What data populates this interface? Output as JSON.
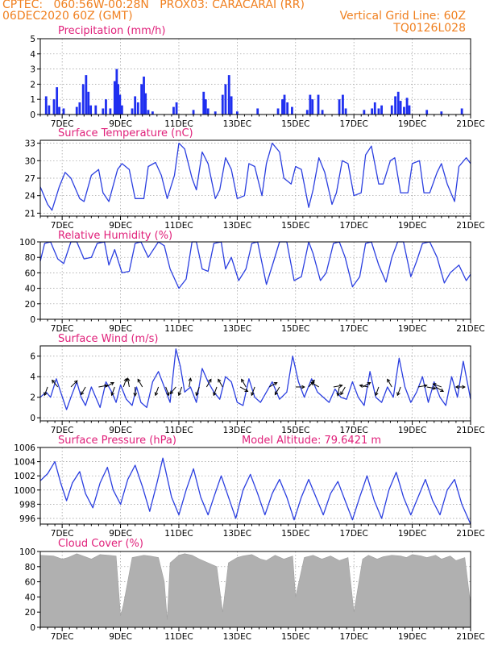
{
  "header": {
    "line1_left": "CPTEC:   060:56W-00:28N   PROX03: CARACARAI (RR)",
    "line2_left": "06DEC2020 60Z (GMT)",
    "line2_right": "Vertical Grid Line: 60Z",
    "line3_right": "TQ0126L028"
  },
  "colors": {
    "header": "#f08020",
    "panel_title": "#e0207a",
    "line": "#2b3fe0",
    "bars": "#1f2ff0",
    "cloud": "#b0b0b0",
    "arrow": "#000000"
  },
  "x_axis": {
    "tick_labels": [
      "7DEC",
      "9DEC",
      "11DEC",
      "13DEC",
      "15DEC",
      "17DEC",
      "19DEC",
      "21DEC"
    ],
    "tick_days": [
      7,
      9,
      11,
      13,
      15,
      17,
      19,
      21
    ],
    "range_days": [
      6.25,
      21.0
    ]
  },
  "chart_data": [
    {
      "id": "precip",
      "type": "bar",
      "title": "Precipitation (mm/h)",
      "ylim": [
        0,
        5
      ],
      "yticks": [
        0,
        1,
        2,
        3,
        4,
        5
      ],
      "grid": true,
      "bars": [
        [
          6.45,
          1.2
        ],
        [
          6.55,
          0.6
        ],
        [
          6.72,
          1.0
        ],
        [
          6.82,
          1.8
        ],
        [
          6.9,
          0.5
        ],
        [
          7.05,
          0.4
        ],
        [
          7.5,
          0.5
        ],
        [
          7.6,
          0.8
        ],
        [
          7.72,
          2.0
        ],
        [
          7.82,
          2.6
        ],
        [
          7.9,
          1.5
        ],
        [
          7.98,
          0.6
        ],
        [
          8.15,
          0.6
        ],
        [
          8.4,
          0.4
        ],
        [
          8.5,
          1.0
        ],
        [
          8.65,
          0.4
        ],
        [
          8.8,
          2.2
        ],
        [
          8.87,
          3.0
        ],
        [
          8.92,
          2.0
        ],
        [
          8.98,
          1.3
        ],
        [
          9.05,
          0.6
        ],
        [
          9.4,
          0.4
        ],
        [
          9.5,
          1.2
        ],
        [
          9.6,
          0.8
        ],
        [
          9.72,
          2.0
        ],
        [
          9.8,
          2.5
        ],
        [
          9.86,
          1.4
        ],
        [
          9.95,
          0.3
        ],
        [
          10.1,
          0.2
        ],
        [
          10.82,
          0.5
        ],
        [
          10.92,
          0.8
        ],
        [
          11.5,
          0.3
        ],
        [
          11.85,
          1.5
        ],
        [
          11.92,
          1.0
        ],
        [
          12.0,
          0.4
        ],
        [
          12.25,
          0.2
        ],
        [
          12.5,
          1.3
        ],
        [
          12.6,
          2.0
        ],
        [
          12.72,
          2.6
        ],
        [
          12.8,
          1.2
        ],
        [
          13.0,
          0.2
        ],
        [
          13.7,
          0.4
        ],
        [
          14.4,
          0.4
        ],
        [
          14.55,
          1.0
        ],
        [
          14.62,
          1.3
        ],
        [
          14.72,
          0.8
        ],
        [
          14.88,
          0.5
        ],
        [
          15.4,
          0.3
        ],
        [
          15.5,
          1.3
        ],
        [
          15.58,
          1.0
        ],
        [
          15.78,
          1.3
        ],
        [
          15.92,
          0.3
        ],
        [
          16.5,
          1.0
        ],
        [
          16.62,
          1.3
        ],
        [
          16.72,
          0.4
        ],
        [
          17.35,
          0.3
        ],
        [
          17.62,
          0.4
        ],
        [
          17.72,
          0.8
        ],
        [
          17.85,
          0.4
        ],
        [
          17.95,
          0.6
        ],
        [
          18.3,
          0.6
        ],
        [
          18.42,
          1.2
        ],
        [
          18.52,
          1.5
        ],
        [
          18.6,
          0.9
        ],
        [
          18.72,
          0.5
        ],
        [
          18.82,
          1.1
        ],
        [
          18.9,
          0.6
        ],
        [
          19.5,
          0.3
        ],
        [
          20.0,
          0.2
        ],
        [
          20.7,
          0.4
        ]
      ]
    },
    {
      "id": "temp",
      "type": "line",
      "title": "Surface Temperature (nC)",
      "ylim": [
        20.5,
        33.5
      ],
      "yticks": [
        21,
        24,
        27,
        30,
        33
      ],
      "grid": true,
      "x": [
        6.25,
        6.5,
        6.65,
        6.9,
        7.1,
        7.3,
        7.6,
        7.75,
        8.0,
        8.25,
        8.4,
        8.6,
        8.9,
        9.05,
        9.3,
        9.5,
        9.8,
        9.95,
        10.2,
        10.4,
        10.6,
        10.85,
        11.0,
        11.2,
        11.45,
        11.6,
        11.8,
        12.0,
        12.25,
        12.4,
        12.6,
        12.8,
        13.0,
        13.25,
        13.4,
        13.6,
        13.85,
        14.0,
        14.2,
        14.45,
        14.6,
        14.85,
        15.0,
        15.2,
        15.45,
        15.6,
        15.8,
        16.0,
        16.25,
        16.4,
        16.6,
        16.8,
        17.0,
        17.25,
        17.4,
        17.6,
        17.85,
        18.0,
        18.25,
        18.4,
        18.6,
        18.85,
        19.0,
        19.25,
        19.4,
        19.6,
        19.85,
        20.0,
        20.2,
        20.45,
        20.6,
        20.85,
        21.0
      ],
      "y": [
        25.5,
        22.5,
        21.5,
        25.5,
        28.0,
        27.0,
        23.5,
        23.0,
        27.5,
        28.5,
        24.5,
        23.0,
        28.5,
        29.5,
        28.5,
        23.5,
        23.5,
        29.0,
        29.7,
        27.5,
        23.5,
        27.5,
        33.0,
        32.0,
        27.0,
        25.0,
        31.5,
        29.5,
        23.5,
        25.0,
        30.5,
        28.5,
        23.5,
        24.0,
        29.5,
        29.0,
        24.0,
        29.5,
        33.0,
        31.5,
        27.0,
        26.0,
        29.0,
        28.5,
        22.0,
        25.0,
        30.5,
        28.0,
        22.5,
        24.5,
        30.0,
        29.5,
        24.0,
        24.5,
        31.0,
        32.5,
        26.0,
        26.0,
        30.0,
        30.5,
        24.5,
        24.5,
        29.5,
        30.0,
        24.5,
        24.5,
        28.0,
        29.5,
        26.0,
        23.0,
        29.0,
        30.5,
        29.5
      ]
    },
    {
      "id": "rh",
      "type": "line",
      "title": "Relative Humidity (%)",
      "ylim": [
        0,
        100
      ],
      "yticks": [
        0,
        20,
        40,
        60,
        80,
        100
      ],
      "grid": true,
      "x": [
        6.25,
        6.4,
        6.6,
        6.85,
        7.05,
        7.3,
        7.5,
        7.75,
        8.0,
        8.2,
        8.45,
        8.6,
        8.8,
        9.05,
        9.3,
        9.5,
        9.7,
        9.95,
        10.3,
        10.5,
        10.7,
        11.0,
        11.25,
        11.45,
        11.6,
        11.8,
        12.0,
        12.2,
        12.45,
        12.6,
        12.8,
        13.05,
        13.3,
        13.5,
        13.7,
        14.0,
        14.25,
        14.45,
        14.7,
        14.95,
        15.2,
        15.45,
        15.6,
        15.85,
        16.05,
        16.3,
        16.5,
        16.7,
        16.95,
        17.2,
        17.4,
        17.6,
        17.85,
        18.1,
        18.3,
        18.5,
        18.7,
        18.95,
        19.15,
        19.35,
        19.6,
        19.85,
        20.1,
        20.3,
        20.6,
        20.85,
        21.0
      ],
      "y": [
        75,
        98,
        100,
        78,
        72,
        100,
        100,
        78,
        80,
        98,
        100,
        70,
        90,
        60,
        62,
        98,
        100,
        80,
        100,
        95,
        65,
        40,
        52,
        100,
        100,
        65,
        62,
        98,
        100,
        65,
        80,
        50,
        65,
        98,
        100,
        45,
        75,
        100,
        100,
        50,
        55,
        100,
        85,
        50,
        60,
        98,
        100,
        80,
        42,
        55,
        98,
        100,
        70,
        48,
        80,
        100,
        100,
        55,
        75,
        98,
        100,
        80,
        47,
        60,
        70,
        50,
        58
      ]
    },
    {
      "id": "wind",
      "type": "line",
      "title": "Surface Wind (m/s)",
      "ylim": [
        -0.3,
        7.0
      ],
      "yticks": [
        0,
        2,
        4,
        6
      ],
      "grid": true,
      "x": [
        6.25,
        6.45,
        6.6,
        6.8,
        6.95,
        7.15,
        7.3,
        7.5,
        7.65,
        7.8,
        8.0,
        8.15,
        8.3,
        8.5,
        8.7,
        8.85,
        9.0,
        9.2,
        9.4,
        9.55,
        9.7,
        9.9,
        10.1,
        10.3,
        10.5,
        10.7,
        10.9,
        11.05,
        11.2,
        11.4,
        11.6,
        11.8,
        12.0,
        12.2,
        12.4,
        12.6,
        12.8,
        13.0,
        13.2,
        13.4,
        13.6,
        13.8,
        14.0,
        14.2,
        14.45,
        14.7,
        14.9,
        15.1,
        15.3,
        15.55,
        15.75,
        15.95,
        16.15,
        16.35,
        16.55,
        16.75,
        16.95,
        17.15,
        17.35,
        17.55,
        17.75,
        17.95,
        18.15,
        18.35,
        18.55,
        18.75,
        18.95,
        19.15,
        19.35,
        19.55,
        19.75,
        19.95,
        20.15,
        20.35,
        20.55,
        20.75,
        21.0
      ],
      "y": [
        2.0,
        2.5,
        2.0,
        3.8,
        2.5,
        0.8,
        2.0,
        3.5,
        2.0,
        1.2,
        3.0,
        2.0,
        1.0,
        3.5,
        2.5,
        1.5,
        3.2,
        1.8,
        1.2,
        3.0,
        1.5,
        1.0,
        3.5,
        4.5,
        3.0,
        1.5,
        6.7,
        5.0,
        2.5,
        3.0,
        1.5,
        4.8,
        3.5,
        2.5,
        1.8,
        4.0,
        3.5,
        1.5,
        1.2,
        3.8,
        2.0,
        1.5,
        2.5,
        3.5,
        1.8,
        2.5,
        6.0,
        3.5,
        2.0,
        3.8,
        2.5,
        2.0,
        1.5,
        2.8,
        2.0,
        1.8,
        3.5,
        2.0,
        1.2,
        4.5,
        2.0,
        1.5,
        3.0,
        2.0,
        5.8,
        3.0,
        1.5,
        2.5,
        4.0,
        1.5,
        3.5,
        2.0,
        1.2,
        4.0,
        2.0,
        5.5,
        1.8
      ],
      "vectors": [
        [
          6.5,
          200
        ],
        [
          6.85,
          320
        ],
        [
          7.3,
          45
        ],
        [
          7.8,
          210
        ],
        [
          8.25,
          80
        ],
        [
          8.5,
          60
        ],
        [
          8.8,
          200
        ],
        [
          9.1,
          20
        ],
        [
          9.3,
          350
        ],
        [
          9.5,
          180
        ],
        [
          9.75,
          330
        ],
        [
          10.3,
          200
        ],
        [
          10.55,
          160
        ],
        [
          10.9,
          220
        ],
        [
          11.1,
          200
        ],
        [
          11.35,
          10
        ],
        [
          11.7,
          200
        ],
        [
          11.95,
          30
        ],
        [
          12.3,
          200
        ],
        [
          12.5,
          330
        ],
        [
          13.1,
          120
        ],
        [
          13.3,
          330
        ],
        [
          13.6,
          200
        ],
        [
          14.1,
          60
        ],
        [
          14.45,
          210
        ],
        [
          15.0,
          90
        ],
        [
          15.45,
          40
        ],
        [
          15.8,
          300
        ],
        [
          16.3,
          80
        ],
        [
          16.5,
          190
        ],
        [
          16.7,
          210
        ],
        [
          17.3,
          60
        ],
        [
          17.5,
          280
        ],
        [
          17.85,
          200
        ],
        [
          18.3,
          330
        ],
        [
          18.6,
          200
        ],
        [
          19.2,
          80
        ],
        [
          19.5,
          100
        ],
        [
          19.8,
          120
        ],
        [
          20.0,
          290
        ],
        [
          20.5,
          90
        ],
        [
          20.8,
          270
        ]
      ]
    },
    {
      "id": "pressure",
      "type": "line",
      "title": "Surface Pressure (hPa)",
      "subtitle": "Model Altitude: 79.6421 m",
      "ylim": [
        995.2,
        1006
      ],
      "yticks": [
        996,
        998,
        1000,
        1002,
        1004,
        1006
      ],
      "grid": true,
      "x": [
        6.25,
        6.5,
        6.75,
        6.95,
        7.15,
        7.35,
        7.6,
        7.8,
        8.05,
        8.3,
        8.55,
        8.75,
        9.0,
        9.25,
        9.5,
        9.75,
        10.0,
        10.25,
        10.45,
        10.75,
        11.0,
        11.25,
        11.5,
        11.75,
        12.0,
        12.2,
        12.45,
        12.7,
        12.95,
        13.2,
        13.45,
        13.7,
        13.95,
        14.2,
        14.45,
        14.7,
        14.95,
        15.2,
        15.45,
        15.7,
        15.95,
        16.2,
        16.45,
        16.7,
        16.95,
        17.2,
        17.45,
        17.7,
        17.95,
        18.2,
        18.45,
        18.7,
        18.95,
        19.2,
        19.45,
        19.7,
        19.95,
        20.2,
        20.45,
        20.7,
        21.0
      ],
      "y": [
        1001.3,
        1002.3,
        1004.0,
        1001.0,
        998.5,
        1001.0,
        1002.6,
        999.5,
        997.5,
        1001.0,
        1003.2,
        1000.0,
        998.0,
        1001.5,
        1003.5,
        1000.5,
        997.0,
        1001.0,
        1004.5,
        999.0,
        996.5,
        1000.0,
        1003.0,
        999.0,
        996.5,
        999.0,
        1002.0,
        999.0,
        996.0,
        1000.0,
        1002.2,
        999.5,
        996.5,
        999.5,
        1001.5,
        999.0,
        995.8,
        999.0,
        1001.5,
        999.0,
        996.5,
        999.5,
        1001.2,
        998.5,
        995.8,
        999.0,
        1002.0,
        998.5,
        996.0,
        1000.0,
        1002.5,
        999.0,
        996.5,
        999.0,
        1001.5,
        998.5,
        996.5,
        1000.0,
        1001.5,
        998.0,
        995.2
      ]
    },
    {
      "id": "cloud",
      "type": "area",
      "title": "Cloud Cover (%)",
      "ylim": [
        0,
        100
      ],
      "yticks": [
        0,
        20,
        40,
        60,
        80,
        100
      ],
      "grid": true,
      "x": [
        6.25,
        6.7,
        7.0,
        7.2,
        7.5,
        7.8,
        8.0,
        8.3,
        8.6,
        8.85,
        9.0,
        9.1,
        9.4,
        9.8,
        10.0,
        10.3,
        10.5,
        10.6,
        10.7,
        11.0,
        11.2,
        11.45,
        11.7,
        12.0,
        12.3,
        12.5,
        12.7,
        13.0,
        13.2,
        13.5,
        13.8,
        14.0,
        14.3,
        14.6,
        14.9,
        15.0,
        15.3,
        15.6,
        15.9,
        16.2,
        16.5,
        16.8,
        17.0,
        17.3,
        17.5,
        17.8,
        18.0,
        18.3,
        18.6,
        18.8,
        19.0,
        19.3,
        19.5,
        19.8,
        20.0,
        20.3,
        20.5,
        20.8,
        21.0
      ],
      "y": [
        95,
        94,
        90,
        92,
        97,
        93,
        90,
        96,
        95,
        94,
        15,
        30,
        92,
        95,
        94,
        92,
        60,
        10,
        85,
        95,
        97,
        95,
        90,
        85,
        80,
        20,
        85,
        92,
        94,
        96,
        90,
        88,
        95,
        90,
        94,
        40,
        92,
        95,
        90,
        94,
        88,
        92,
        20,
        90,
        95,
        90,
        93,
        95,
        94,
        92,
        96,
        94,
        92,
        95,
        90,
        94,
        88,
        92,
        30
      ]
    }
  ]
}
